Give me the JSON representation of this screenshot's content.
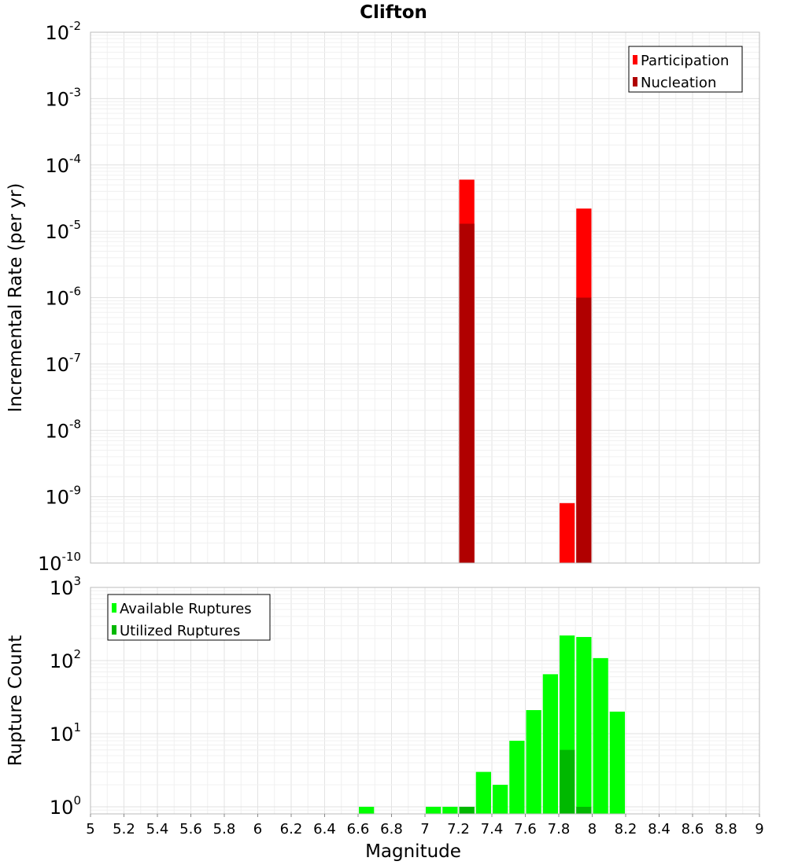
{
  "title": "Clifton",
  "colors": {
    "participation": "#ff0000",
    "nucleation": "#b00000",
    "available": "#00ff00",
    "utilized": "#00b800",
    "grid": "#e6e6e6",
    "border": "#bbbbbb"
  },
  "chart_data": [
    {
      "type": "bar",
      "title": "Clifton",
      "ylabel": "Incremental Rate (per yr)",
      "xlabel": "",
      "yscale": "log",
      "ylim": [
        1e-10,
        0.01
      ],
      "xlim": [
        5,
        9
      ],
      "ytick_exponents": [
        -10,
        -9,
        -8,
        -7,
        -6,
        -5,
        -4,
        -3,
        -2
      ],
      "grid": true,
      "legend": "top-right",
      "series": [
        {
          "name": "Participation",
          "x": [
            7.25,
            7.85,
            7.95
          ],
          "values": [
            6e-05,
            8e-10,
            2.2e-05
          ]
        },
        {
          "name": "Nucleation",
          "x": [
            7.25,
            7.95
          ],
          "values": [
            1.3e-05,
            1e-06
          ]
        }
      ]
    },
    {
      "type": "bar",
      "title": "",
      "ylabel": "Rupture Count",
      "xlabel": "Magnitude",
      "yscale": "log",
      "ylim": [
        0.8,
        1000
      ],
      "xlim": [
        5,
        9
      ],
      "ytick_exponents": [
        0,
        1,
        2,
        3
      ],
      "xticks": [
        "5",
        "5.2",
        "5.4",
        "5.6",
        "5.8",
        "6",
        "6.2",
        "6.4",
        "6.6",
        "6.8",
        "7",
        "7.2",
        "7.4",
        "7.6",
        "7.8",
        "8",
        "8.2",
        "8.4",
        "8.6",
        "8.8",
        "9"
      ],
      "grid": true,
      "legend": "top-left",
      "series": [
        {
          "name": "Available Ruptures",
          "x": [
            6.65,
            7.05,
            7.15,
            7.25,
            7.35,
            7.45,
            7.55,
            7.65,
            7.75,
            7.85,
            7.95,
            8.05,
            8.15
          ],
          "values": [
            1,
            1,
            1,
            1,
            3,
            2,
            8,
            21,
            65,
            220,
            210,
            108,
            20
          ]
        },
        {
          "name": "Utilized Ruptures",
          "x": [
            7.25,
            7.85,
            7.95
          ],
          "values": [
            1,
            6,
            1
          ]
        }
      ]
    }
  ]
}
